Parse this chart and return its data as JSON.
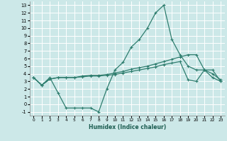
{
  "xlabel": "Humidex (Indice chaleur)",
  "xlim": [
    -0.5,
    23.5
  ],
  "ylim": [
    -1.5,
    13.5
  ],
  "xticks": [
    0,
    1,
    2,
    3,
    4,
    5,
    6,
    7,
    8,
    9,
    10,
    11,
    12,
    13,
    14,
    15,
    16,
    17,
    18,
    19,
    20,
    21,
    22,
    23
  ],
  "yticks": [
    -1,
    0,
    1,
    2,
    3,
    4,
    5,
    6,
    7,
    8,
    9,
    10,
    11,
    12,
    13
  ],
  "bg_color": "#cce8e8",
  "grid_color": "#ffffff",
  "line_color": "#2e7d6e",
  "line1_x": [
    0,
    1,
    2,
    3,
    4,
    5,
    6,
    7,
    8,
    9,
    10,
    11,
    12,
    13,
    14,
    15,
    16,
    17,
    18,
    19,
    20,
    21,
    22,
    23
  ],
  "line1_y": [
    3.5,
    2.5,
    3.5,
    1.5,
    -0.5,
    -0.5,
    -0.5,
    -0.5,
    -1.0,
    2.0,
    4.5,
    5.5,
    7.5,
    8.5,
    10.0,
    12.0,
    13.0,
    8.5,
    6.5,
    5.0,
    4.5,
    4.5,
    3.5,
    3.0
  ],
  "line2_x": [
    0,
    1,
    2,
    3,
    4,
    5,
    6,
    7,
    8,
    9,
    10,
    11,
    12,
    13,
    14,
    15,
    16,
    17,
    18,
    19,
    20,
    21,
    22,
    23
  ],
  "line2_y": [
    3.5,
    2.5,
    3.3,
    3.5,
    3.5,
    3.5,
    3.7,
    3.8,
    3.8,
    3.9,
    4.1,
    4.3,
    4.6,
    4.8,
    5.0,
    5.3,
    5.6,
    5.9,
    6.2,
    6.5,
    6.5,
    4.5,
    4.0,
    3.2
  ],
  "line3_x": [
    0,
    1,
    2,
    3,
    4,
    5,
    6,
    7,
    8,
    9,
    10,
    11,
    12,
    13,
    14,
    15,
    16,
    17,
    18,
    19,
    20,
    21,
    22,
    23
  ],
  "line3_y": [
    3.5,
    2.5,
    3.3,
    3.5,
    3.5,
    3.5,
    3.6,
    3.7,
    3.7,
    3.8,
    3.9,
    4.1,
    4.3,
    4.5,
    4.7,
    4.9,
    5.2,
    5.4,
    5.6,
    3.2,
    3.0,
    4.5,
    4.5,
    3.0
  ]
}
